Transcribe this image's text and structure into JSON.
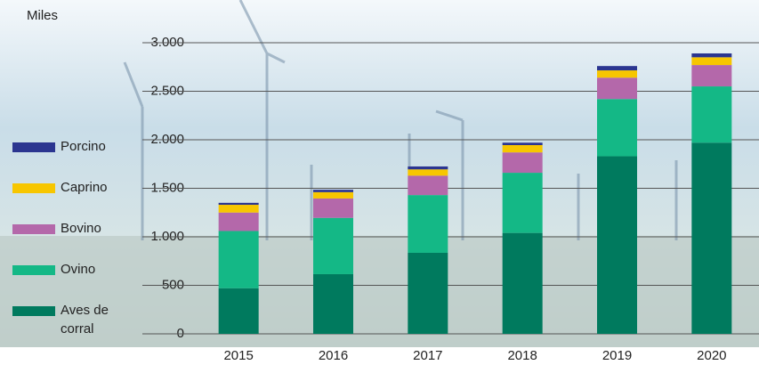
{
  "chart_data": {
    "type": "stacked_bar",
    "ylabel": "Miles",
    "categories": [
      "2015",
      "2016",
      "2017",
      "2018",
      "2019",
      "2020"
    ],
    "series": [
      {
        "name": "Aves de corral",
        "color": "#007a5e",
        "values": [
          470,
          615,
          835,
          1040,
          1830,
          1970
        ]
      },
      {
        "name": "Ovino",
        "color": "#14b886",
        "values": [
          590,
          580,
          595,
          620,
          590,
          580
        ]
      },
      {
        "name": "Bovino",
        "color": "#b468aa",
        "values": [
          190,
          200,
          200,
          210,
          220,
          220
        ]
      },
      {
        "name": "Caprino",
        "color": "#f7c600",
        "values": [
          80,
          65,
          65,
          75,
          75,
          80
        ]
      },
      {
        "name": "Porcino",
        "color": "#2b3590",
        "values": [
          20,
          25,
          30,
          25,
          45,
          40
        ]
      }
    ],
    "ylim": [
      0,
      3000
    ],
    "yticks": [
      {
        "value": 0,
        "label": "0"
      },
      {
        "value": 500,
        "label": "500"
      },
      {
        "value": 1000,
        "label": "1.000"
      },
      {
        "value": 1500,
        "label": "1.500"
      },
      {
        "value": 2000,
        "label": "2.000"
      },
      {
        "value": 2500,
        "label": "2.500"
      },
      {
        "value": 3000,
        "label": "3.000"
      }
    ],
    "grid": true
  }
}
